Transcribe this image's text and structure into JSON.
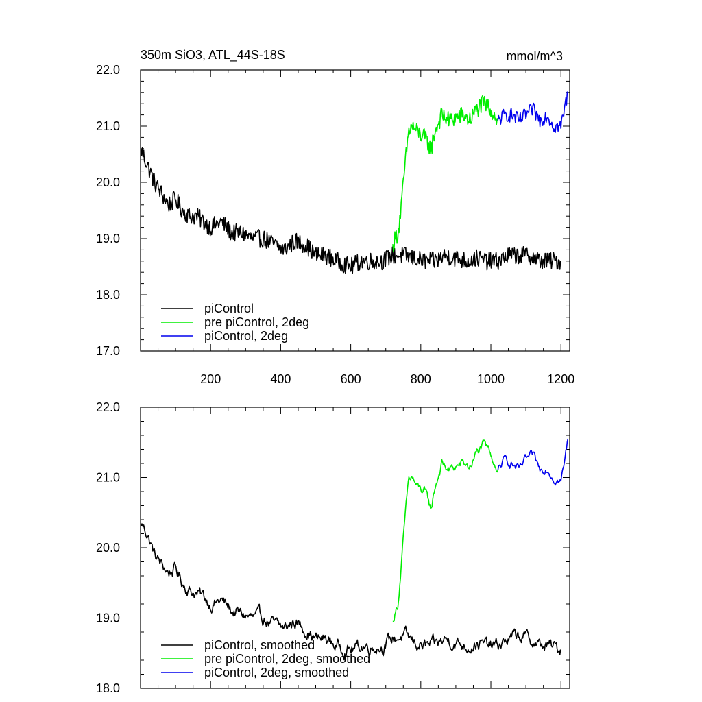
{
  "chart_data": [
    {
      "type": "line",
      "title": "350m SiO3, ATL_44S-18S",
      "units": "mmol/m^3",
      "xlim": [
        0,
        1225
      ],
      "ylim": [
        17.0,
        22.0
      ],
      "xticks": [
        200,
        400,
        600,
        800,
        1000,
        1200
      ],
      "xtick_labels": [
        "200",
        "400",
        "600",
        "800",
        "1000",
        "1200"
      ],
      "yticks": [
        17.0,
        18.0,
        19.0,
        20.0,
        21.0,
        22.0
      ],
      "ytick_labels": [
        "17.0",
        "18.0",
        "19.0",
        "20.0",
        "21.0",
        "22.0"
      ],
      "grid": false,
      "legend_position": "bottom-left",
      "series": [
        {
          "name": "piControl",
          "color": "#000000",
          "x": [
            1,
            20,
            40,
            60,
            80,
            100,
            120,
            140,
            160,
            180,
            200,
            230,
            260,
            290,
            320,
            350,
            380,
            410,
            440,
            470,
            500,
            530,
            560,
            600,
            630,
            660,
            690,
            720,
            750,
            780,
            810,
            840,
            870,
            900,
            930,
            960,
            990,
            1020,
            1050,
            1080,
            1110,
            1140,
            1170,
            1200
          ],
          "y": [
            20.6,
            20.3,
            20.0,
            19.8,
            19.6,
            19.7,
            19.5,
            19.4,
            19.4,
            19.3,
            19.2,
            19.3,
            19.1,
            19.1,
            19.0,
            19.0,
            18.9,
            18.8,
            18.95,
            18.9,
            18.7,
            18.7,
            18.6,
            18.5,
            18.6,
            18.6,
            18.6,
            18.7,
            18.7,
            18.65,
            18.6,
            18.6,
            18.7,
            18.65,
            18.6,
            18.65,
            18.6,
            18.6,
            18.7,
            18.7,
            18.7,
            18.6,
            18.6,
            18.6
          ]
        },
        {
          "name": "pre piControl, 2deg",
          "color": "#00ee00",
          "x": [
            720,
            735,
            745,
            755,
            765,
            775,
            790,
            810,
            830,
            840,
            860,
            880,
            900,
            920,
            940,
            960,
            980,
            1000,
            1020
          ],
          "y": [
            18.9,
            19.1,
            19.6,
            20.3,
            20.9,
            21.0,
            20.9,
            20.8,
            20.6,
            20.9,
            21.2,
            21.1,
            21.15,
            21.2,
            21.1,
            21.3,
            21.4,
            21.3,
            21.1
          ]
        },
        {
          "name": "piControl, 2deg",
          "color": "#0000ee",
          "x": [
            1020,
            1040,
            1060,
            1080,
            1100,
            1120,
            1140,
            1160,
            1180,
            1200,
            1210,
            1220
          ],
          "y": [
            21.1,
            21.2,
            21.2,
            21.1,
            21.2,
            21.3,
            21.1,
            21.2,
            21.0,
            21.0,
            21.3,
            21.6
          ]
        }
      ]
    },
    {
      "type": "line",
      "title": "",
      "xlim": [
        0,
        1225
      ],
      "ylim": [
        18.0,
        22.0
      ],
      "xticks": [
        200,
        400,
        600,
        800,
        1000,
        1200
      ],
      "yticks": [
        18.0,
        19.0,
        20.0,
        21.0,
        22.0
      ],
      "ytick_labels": [
        "18.0",
        "19.0",
        "20.0",
        "21.0",
        "22.0"
      ],
      "grid": false,
      "legend_position": "bottom-left",
      "series": [
        {
          "name": "piControl, smoothed",
          "color": "#000000",
          "x": [
            1,
            20,
            40,
            60,
            80,
            100,
            120,
            140,
            160,
            180,
            200,
            230,
            260,
            290,
            320,
            350,
            380,
            410,
            440,
            470,
            500,
            530,
            560,
            600,
            630,
            660,
            690,
            720,
            750,
            780,
            810,
            840,
            870,
            900,
            930,
            960,
            990,
            1020,
            1050,
            1080,
            1110,
            1140,
            1170,
            1200
          ],
          "y": [
            20.35,
            20.2,
            19.9,
            19.75,
            19.65,
            19.7,
            19.5,
            19.4,
            19.35,
            19.3,
            19.2,
            19.25,
            19.1,
            19.05,
            19.0,
            19.0,
            18.9,
            18.85,
            18.95,
            18.85,
            18.7,
            18.7,
            18.6,
            18.55,
            18.6,
            18.6,
            18.6,
            18.7,
            18.75,
            18.65,
            18.6,
            18.6,
            18.7,
            18.65,
            18.6,
            18.65,
            18.6,
            18.6,
            18.7,
            18.75,
            18.7,
            18.6,
            18.6,
            18.55
          ]
        },
        {
          "name": "pre piControl, 2deg, smoothed",
          "color": "#00ee00",
          "x": [
            720,
            735,
            745,
            755,
            765,
            775,
            790,
            810,
            830,
            840,
            860,
            880,
            900,
            920,
            940,
            960,
            980,
            1000,
            1020
          ],
          "y": [
            18.95,
            19.2,
            19.8,
            20.4,
            20.95,
            21.0,
            20.85,
            20.8,
            20.55,
            20.85,
            21.2,
            21.1,
            21.15,
            21.2,
            21.15,
            21.35,
            21.45,
            21.35,
            21.1
          ]
        },
        {
          "name": "piControl, 2deg, smoothed",
          "color": "#0000ee",
          "x": [
            1020,
            1040,
            1060,
            1080,
            1100,
            1120,
            1140,
            1160,
            1180,
            1200,
            1210,
            1220
          ],
          "y": [
            21.1,
            21.25,
            21.2,
            21.1,
            21.25,
            21.3,
            21.1,
            21.15,
            21.0,
            20.95,
            21.2,
            21.55
          ]
        }
      ]
    }
  ]
}
